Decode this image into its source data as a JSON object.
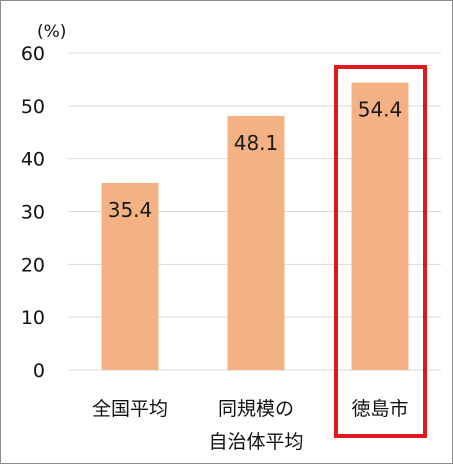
{
  "chart_data": {
    "type": "bar",
    "unit_label": "(%)",
    "categories": [
      [
        "全国平均"
      ],
      [
        "同規模の",
        "自治体平均"
      ],
      [
        "徳島市"
      ]
    ],
    "values": [
      35.4,
      48.1,
      54.4
    ],
    "value_labels": [
      "35.4",
      "48.1",
      "54.4"
    ],
    "ylim": [
      0,
      60
    ],
    "yticks": [
      0,
      10,
      20,
      30,
      40,
      50,
      60
    ],
    "grid": true,
    "highlight_index": 2,
    "colors": {
      "bar": "#F4B183",
      "grid": "#D9D9D9",
      "highlight_box": "#E0191C"
    }
  }
}
